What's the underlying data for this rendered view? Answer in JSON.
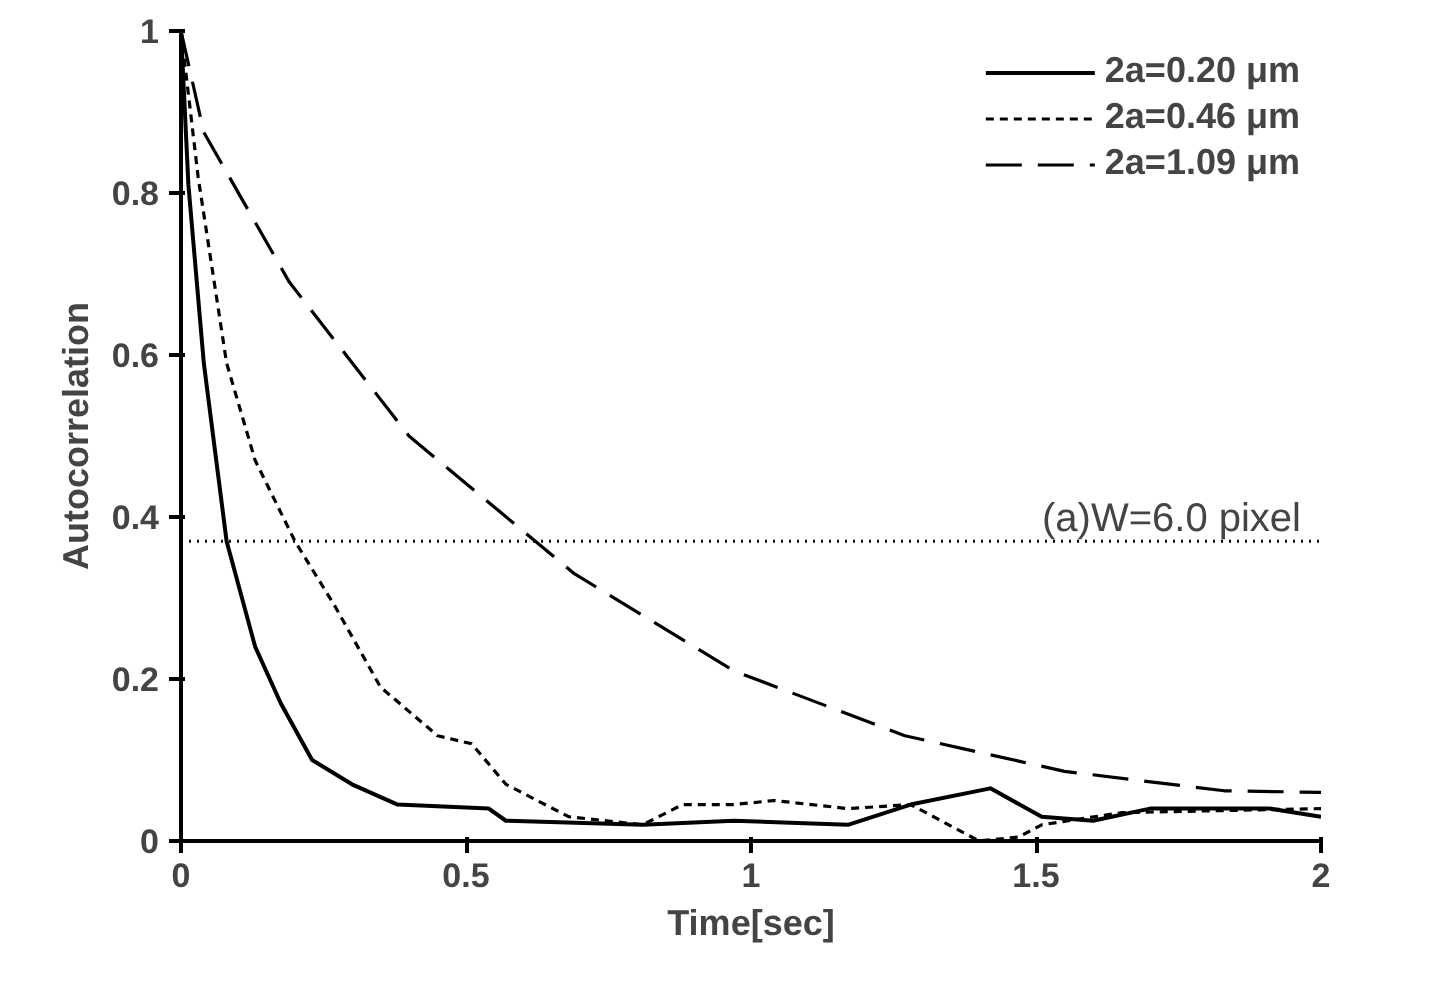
{
  "chart_data": {
    "type": "line",
    "xlabel": "Time[sec]",
    "ylabel": "Autocorrelation",
    "xlim": [
      0,
      2
    ],
    "ylim": [
      0,
      1
    ],
    "xticks": [
      0,
      0.5,
      1,
      1.5,
      2
    ],
    "yticks": [
      0,
      0.2,
      0.4,
      0.6,
      0.8,
      1
    ],
    "grid": false,
    "legend": "top right",
    "marker": "none",
    "series": [
      {
        "name": "2a=0.20 μm",
        "color": "#000000",
        "line_style": "solid",
        "x": [
          0,
          0.013,
          0.04,
          0.08,
          0.13,
          0.175,
          0.23,
          0.3,
          0.38,
          0.54,
          0.57,
          0.81,
          0.97,
          1.17,
          1.28,
          1.42,
          1.51,
          1.6,
          1.7,
          1.91,
          2.0
        ],
        "values": [
          1,
          0.81,
          0.59,
          0.37,
          0.24,
          0.17,
          0.1,
          0.07,
          0.045,
          0.04,
          0.025,
          0.02,
          0.025,
          0.02,
          0.045,
          0.065,
          0.03,
          0.025,
          0.04,
          0.04,
          0.03
        ]
      },
      {
        "name": "2a=0.46 μm",
        "color": "#000000",
        "line_style": "dashed",
        "x": [
          0,
          0.03,
          0.08,
          0.13,
          0.2,
          0.27,
          0.35,
          0.45,
          0.51,
          0.57,
          0.68,
          0.81,
          0.88,
          0.97,
          1.04,
          1.17,
          1.28,
          1.32,
          1.4,
          1.47,
          1.51,
          1.65,
          2.0
        ],
        "values": [
          1,
          0.82,
          0.59,
          0.47,
          0.37,
          0.29,
          0.19,
          0.13,
          0.12,
          0.07,
          0.03,
          0.02,
          0.045,
          0.045,
          0.05,
          0.04,
          0.045,
          0.03,
          0.0,
          0.005,
          0.02,
          0.035,
          0.04
        ]
      },
      {
        "name": "2a=1.09 μm",
        "color": "#000000",
        "line_style": "longdash",
        "x": [
          0,
          0.04,
          0.19,
          0.4,
          0.69,
          0.97,
          1.27,
          1.55,
          1.83,
          2.0
        ],
        "values": [
          1,
          0.875,
          0.69,
          0.5,
          0.33,
          0.21,
          0.13,
          0.086,
          0.062,
          0.06
        ]
      }
    ],
    "ref_lines": [
      {
        "axis": "y",
        "value": 0.37,
        "color": "#000000",
        "line_style": "dotted"
      }
    ],
    "annotations": [
      "(a)W=6.0 pixel"
    ]
  }
}
